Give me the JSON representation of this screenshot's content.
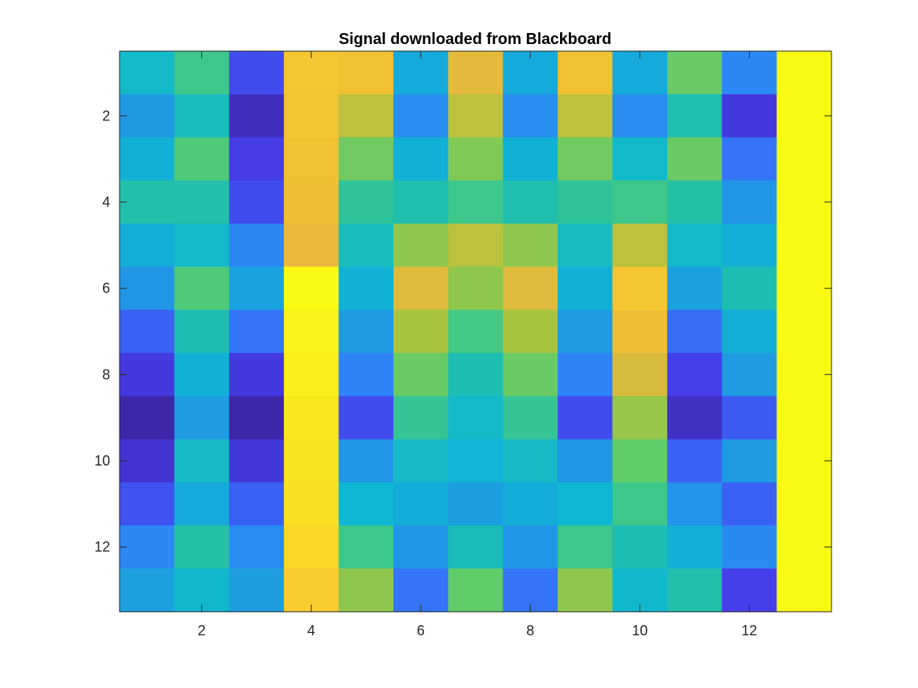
{
  "title": "Signal downloaded from Blackboard",
  "chart_data": {
    "type": "heatmap",
    "title": "Signal downloaded from Blackboard",
    "xlabel": "",
    "ylabel": "",
    "x": [
      1,
      2,
      3,
      4,
      5,
      6,
      7,
      8,
      9,
      10,
      11,
      12,
      13
    ],
    "y": [
      1,
      2,
      3,
      4,
      5,
      6,
      7,
      8,
      9,
      10,
      11,
      12,
      13
    ],
    "xlim": [
      0.5,
      13.5
    ],
    "ylim": [
      0.5,
      13.5
    ],
    "y_direction": "reversed",
    "x_ticks": [
      2,
      4,
      6,
      8,
      10,
      12
    ],
    "y_ticks": [
      2,
      4,
      6,
      8,
      10,
      12
    ],
    "x_tick_labels": [
      "2",
      "4",
      "6",
      "8",
      "10",
      "12"
    ],
    "y_tick_labels": [
      "2",
      "4",
      "6",
      "8",
      "10",
      "12"
    ],
    "colormap": "parula",
    "clim": [
      0,
      1
    ],
    "grid": false,
    "colorbar": false,
    "values": [
      [
        0.42,
        0.55,
        0.12,
        0.86,
        0.84,
        0.35,
        0.79,
        0.35,
        0.84,
        0.35,
        0.62,
        0.22,
        1.0
      ],
      [
        0.29,
        0.45,
        0.03,
        0.85,
        0.73,
        0.24,
        0.73,
        0.24,
        0.73,
        0.24,
        0.48,
        0.08,
        1.0
      ],
      [
        0.38,
        0.58,
        0.09,
        0.84,
        0.63,
        0.38,
        0.65,
        0.38,
        0.63,
        0.42,
        0.62,
        0.18,
        1.0
      ],
      [
        0.49,
        0.49,
        0.12,
        0.83,
        0.52,
        0.48,
        0.55,
        0.48,
        0.52,
        0.55,
        0.5,
        0.28,
        1.0
      ],
      [
        0.37,
        0.42,
        0.22,
        0.8,
        0.45,
        0.67,
        0.73,
        0.67,
        0.44,
        0.73,
        0.42,
        0.37,
        1.0
      ],
      [
        0.28,
        0.58,
        0.33,
        1.0,
        0.38,
        0.78,
        0.67,
        0.78,
        0.38,
        0.86,
        0.32,
        0.47,
        1.0
      ],
      [
        0.15,
        0.47,
        0.18,
        0.98,
        0.3,
        0.7,
        0.56,
        0.7,
        0.3,
        0.83,
        0.17,
        0.37,
        1.0
      ],
      [
        0.08,
        0.38,
        0.08,
        0.97,
        0.2,
        0.62,
        0.47,
        0.62,
        0.2,
        0.77,
        0.1,
        0.3,
        1.0
      ],
      [
        0.0,
        0.3,
        0.0,
        0.96,
        0.12,
        0.53,
        0.42,
        0.53,
        0.12,
        0.68,
        0.04,
        0.14,
        1.0
      ],
      [
        0.06,
        0.43,
        0.07,
        0.95,
        0.28,
        0.43,
        0.39,
        0.43,
        0.28,
        0.61,
        0.15,
        0.3,
        1.0
      ],
      [
        0.13,
        0.35,
        0.15,
        0.94,
        0.4,
        0.36,
        0.31,
        0.36,
        0.4,
        0.55,
        0.27,
        0.15,
        1.0
      ],
      [
        0.22,
        0.5,
        0.24,
        0.92,
        0.55,
        0.28,
        0.46,
        0.28,
        0.55,
        0.47,
        0.37,
        0.23,
        1.0
      ],
      [
        0.32,
        0.41,
        0.31,
        0.89,
        0.67,
        0.18,
        0.61,
        0.18,
        0.67,
        0.41,
        0.49,
        0.1,
        1.0
      ]
    ]
  }
}
